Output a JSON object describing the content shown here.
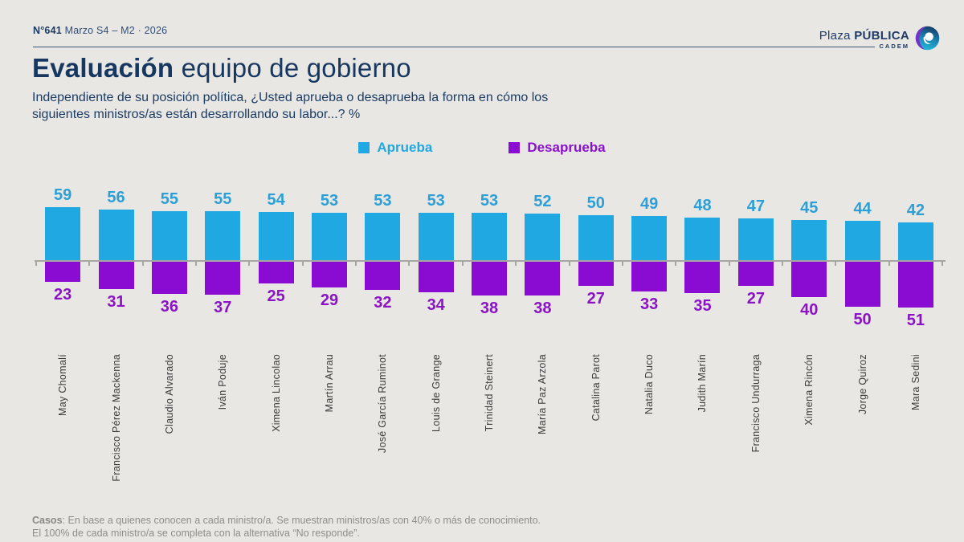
{
  "header": {
    "issue": "N°641",
    "edition": "Marzo S4 – M2 · 2026"
  },
  "brand": {
    "plaza": "Plaza ",
    "publica": "PÚBLICA",
    "cadem": "CADEM"
  },
  "title": {
    "bold": "Evaluación",
    "regular": " equipo de gobierno"
  },
  "subtitle": {
    "line1": "Independiente de su posición política, ¿Usted aprueba o desaprueba la forma en cómo los",
    "line2": "siguientes ministros/as están desarrollando su labor...? %"
  },
  "colors": {
    "approve": "#1FA8E1",
    "disapprove": "#8A0BD2",
    "navy": "#1B3A64",
    "background": "#E9E7E4"
  },
  "chart_data": {
    "type": "bar",
    "orientation": "diverging",
    "unit": "%",
    "categories": [
      "May Chomalí",
      "Francisco Pérez Mackenna",
      "Claudio Alvarado",
      "Iván Poduje",
      "Ximena Lincolao",
      "Martín Arrau",
      "José García Ruminot",
      "Louis de Grange",
      "Trinidad Steinert",
      "María Paz Arzola",
      "Catalina Parot",
      "Natalia Duco",
      "Judith Marín",
      "Francisco Undurraga",
      "Ximena Rincón",
      "Jorge Quiroz",
      "Mara Sedini"
    ],
    "series": [
      {
        "name": "Aprueba",
        "values": [
          59,
          56,
          55,
          55,
          54,
          53,
          53,
          53,
          53,
          52,
          50,
          49,
          48,
          47,
          45,
          44,
          42
        ]
      },
      {
        "name": "Desaprueba",
        "values": [
          23,
          31,
          36,
          37,
          25,
          29,
          32,
          34,
          38,
          38,
          27,
          33,
          35,
          27,
          40,
          50,
          51
        ]
      }
    ],
    "legend_position": "top-center",
    "grid": false
  },
  "footer": {
    "bold": "Casos",
    "line1_rest": ": En base a quienes conocen a cada ministro/a. Se muestran ministros/as con 40% o más de conocimiento.",
    "line2": "El 100% de cada ministro/a se completa con la alternativa “No responde”."
  }
}
